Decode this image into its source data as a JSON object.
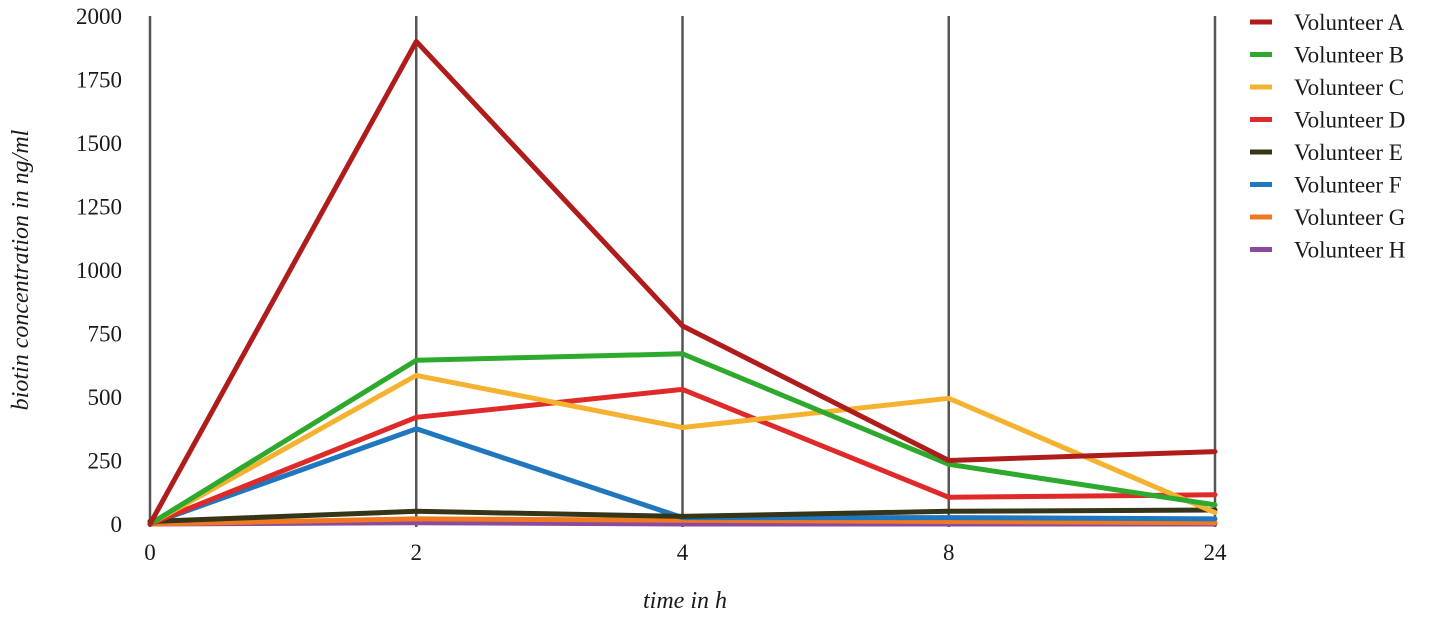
{
  "chart_data": {
    "type": "line",
    "title": "",
    "xlabel": "time in h",
    "ylabel": "biotin concentration in ng/ml",
    "categories": [
      "0",
      "2",
      "4",
      "8",
      "24"
    ],
    "ylim": [
      0,
      2000
    ],
    "yticks": [
      "0",
      "250",
      "500",
      "750",
      "1000",
      "1250",
      "1500",
      "1750",
      "2000"
    ],
    "grid": "vertical lines at each time point",
    "legend_position": "right",
    "series": [
      {
        "name": "Volunteer A",
        "color": "#B01C1C",
        "values": [
          0,
          1900,
          780,
          250,
          285
        ]
      },
      {
        "name": "Volunteer B",
        "color": "#2DAA2D",
        "values": [
          0,
          645,
          670,
          235,
          75
        ]
      },
      {
        "name": "Volunteer C",
        "color": "#F5B130",
        "values": [
          0,
          585,
          380,
          495,
          45
        ]
      },
      {
        "name": "Volunteer D",
        "color": "#E02A2A",
        "values": [
          0,
          420,
          530,
          105,
          115
        ]
      },
      {
        "name": "Volunteer E",
        "color": "#353519",
        "values": [
          10,
          50,
          30,
          50,
          55
        ]
      },
      {
        "name": "Volunteer F",
        "color": "#1F78BF",
        "values": [
          0,
          375,
          25,
          25,
          20
        ]
      },
      {
        "name": "Volunteer G",
        "color": "#F07820",
        "values": [
          0,
          20,
          15,
          10,
          5
        ]
      },
      {
        "name": "Volunteer H",
        "color": "#8A4A9E",
        "values": [
          0,
          5,
          0,
          0,
          0
        ]
      }
    ]
  }
}
